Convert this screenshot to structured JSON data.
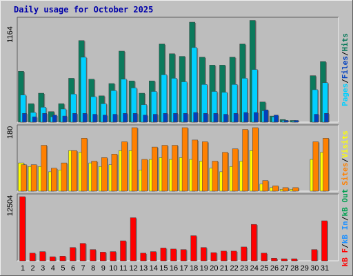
{
  "title": "Daily usage for October 2025",
  "colors": {
    "frame_bg": "#c0c0c0",
    "panel_bg": "#bdbdbd",
    "border_light": "#f0f0f0",
    "border_dark": "#606060",
    "hits": "#0b7a5c",
    "files": "#00d0ff",
    "pages": "#0040c0",
    "visits": "#ffff00",
    "sites": "#ff8000",
    "kbin": "#1e90ff",
    "kbout": "#00a050",
    "kbf": "#ff0000",
    "weekday": "#000000",
    "weekend": "#008040"
  },
  "chart_data": [
    {
      "type": "bar",
      "panel": "hits_files_pages",
      "ymax_label": "1164",
      "ymax": 1164,
      "legend": [
        "Pages",
        "Files",
        "Hits"
      ],
      "legend_colors": [
        "#00d0ff",
        "#0040c0",
        "#0b7a5c"
      ],
      "series": [
        {
          "name": "Hits",
          "values": [
            580,
            210,
            330,
            120,
            210,
            500,
            930,
            490,
            300,
            440,
            810,
            470,
            330,
            470,
            890,
            780,
            750,
            1140,
            740,
            650,
            650,
            740,
            890,
            1160,
            230,
            70,
            30,
            20,
            0,
            530,
            690
          ]
        },
        {
          "name": "Files",
          "values": [
            310,
            110,
            170,
            60,
            150,
            320,
            740,
            290,
            210,
            360,
            490,
            390,
            200,
            350,
            540,
            500,
            460,
            850,
            430,
            350,
            340,
            430,
            500,
            600,
            130,
            60,
            20,
            10,
            0,
            370,
            450
          ]
        },
        {
          "name": "Pages",
          "values": [
            100,
            60,
            100,
            80,
            70,
            100,
            100,
            90,
            80,
            90,
            100,
            100,
            80,
            90,
            100,
            100,
            100,
            110,
            100,
            100,
            90,
            100,
            110,
            110,
            140,
            80,
            20,
            20,
            0,
            90,
            100
          ]
        }
      ]
    },
    {
      "type": "bar",
      "panel": "visits_sites",
      "ymax_label": "180",
      "ymax": 180,
      "legend": [
        "Sites",
        "Visits"
      ],
      "legend_colors": [
        "#ff8000",
        "#ffff00"
      ],
      "series": [
        {
          "name": "Visits",
          "values": [
            80,
            70,
            70,
            55,
            60,
            115,
            110,
            80,
            70,
            75,
            115,
            115,
            60,
            90,
            95,
            90,
            95,
            90,
            85,
            65,
            55,
            70,
            85,
            115,
            20,
            10,
            5,
            5,
            0,
            90,
            110
          ]
        },
        {
          "name": "Sites",
          "values": [
            75,
            75,
            130,
            65,
            80,
            115,
            150,
            85,
            95,
            105,
            140,
            180,
            90,
            125,
            130,
            130,
            180,
            145,
            140,
            85,
            110,
            120,
            175,
            180,
            30,
            15,
            10,
            10,
            0,
            140,
            150
          ]
        }
      ]
    },
    {
      "type": "bar",
      "panel": "kbytes",
      "ymax_label": "12504",
      "ymax": 12504,
      "legend": [
        "kB F",
        "kB In",
        "kB Out"
      ],
      "legend_colors": [
        "#ff0000",
        "#1e90ff",
        "#00a050"
      ],
      "series": [
        {
          "name": "kB F",
          "values": [
            12504,
            1500,
            1800,
            800,
            900,
            2600,
            3400,
            2200,
            1700,
            1800,
            3900,
            8400,
            1500,
            1800,
            2500,
            2300,
            2200,
            4900,
            2600,
            1600,
            1900,
            1900,
            2700,
            7100,
            1500,
            500,
            400,
            400,
            0,
            2200,
            7800
          ]
        }
      ]
    }
  ],
  "days": [
    "1",
    "2",
    "3",
    "4",
    "5",
    "6",
    "7",
    "8",
    "9",
    "10",
    "11",
    "12",
    "13",
    "14",
    "15",
    "16",
    "17",
    "18",
    "19",
    "20",
    "21",
    "22",
    "23",
    "24",
    "25",
    "26",
    "27",
    "28",
    "29",
    "30",
    "31"
  ],
  "weekend_days": [
    "4",
    "5",
    "11",
    "12",
    "18",
    "19",
    "25",
    "26"
  ]
}
